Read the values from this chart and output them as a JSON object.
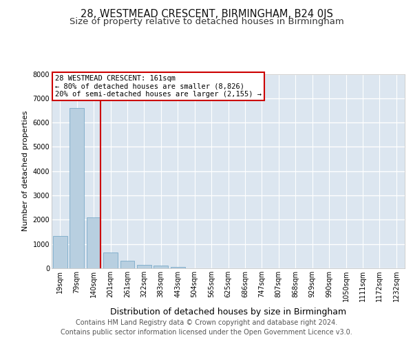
{
  "title": "28, WESTMEAD CRESCENT, BIRMINGHAM, B24 0JS",
  "subtitle": "Size of property relative to detached houses in Birmingham",
  "xlabel": "Distribution of detached houses by size in Birmingham",
  "ylabel": "Number of detached properties",
  "bin_labels": [
    "19sqm",
    "79sqm",
    "140sqm",
    "201sqm",
    "261sqm",
    "322sqm",
    "383sqm",
    "443sqm",
    "504sqm",
    "565sqm",
    "625sqm",
    "686sqm",
    "747sqm",
    "807sqm",
    "868sqm",
    "929sqm",
    "990sqm",
    "1050sqm",
    "1111sqm",
    "1172sqm",
    "1232sqm"
  ],
  "bar_values": [
    1320,
    6600,
    2100,
    650,
    300,
    150,
    100,
    70,
    10,
    0,
    0,
    0,
    0,
    0,
    0,
    0,
    0,
    0,
    0,
    0,
    0
  ],
  "bar_color": "#b8cfe0",
  "bar_edge_color": "#7aaac8",
  "background_color": "#dce6f0",
  "grid_color": "#ffffff",
  "annotation_text": "28 WESTMEAD CRESCENT: 161sqm\n← 80% of detached houses are smaller (8,826)\n20% of semi-detached houses are larger (2,155) →",
  "annotation_box_color": "#cc0000",
  "vline_color": "#cc0000",
  "ylim": [
    0,
    8000
  ],
  "yticks": [
    0,
    1000,
    2000,
    3000,
    4000,
    5000,
    6000,
    7000,
    8000
  ],
  "footer_line1": "Contains HM Land Registry data © Crown copyright and database right 2024.",
  "footer_line2": "Contains public sector information licensed under the Open Government Licence v3.0.",
  "title_fontsize": 10.5,
  "subtitle_fontsize": 9.5,
  "footer_fontsize": 7,
  "ylabel_fontsize": 8,
  "xlabel_fontsize": 9,
  "tick_fontsize": 7,
  "annot_fontsize": 7.5
}
